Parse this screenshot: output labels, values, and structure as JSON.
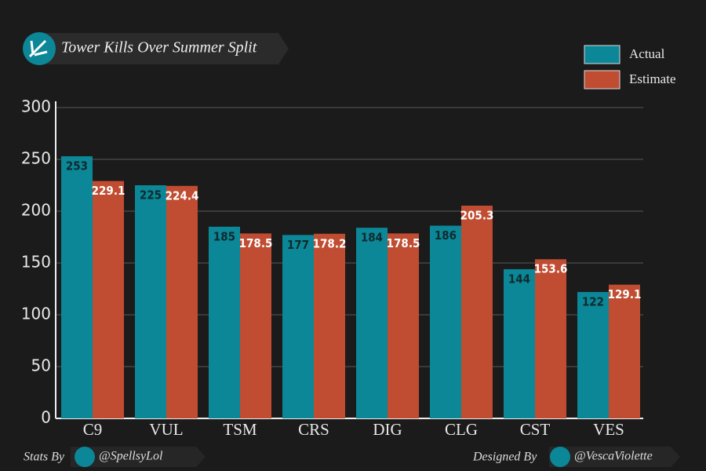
{
  "chart_data": {
    "type": "bar",
    "title": "Tower Kills Over Summer Split",
    "categories": [
      "C9",
      "VUL",
      "TSM",
      "CRS",
      "DIG",
      "CLG",
      "CST",
      "VES"
    ],
    "series": [
      {
        "name": "Actual",
        "color": "#0b8797",
        "values": [
          253,
          225,
          185,
          177,
          184,
          186,
          144,
          122
        ]
      },
      {
        "name": "Estimate",
        "color": "#c04c32",
        "values": [
          229.1,
          224.4,
          178.5,
          178.2,
          178.5,
          205.3,
          153.6,
          129.1
        ]
      }
    ],
    "ylim": [
      0,
      300
    ],
    "yticks": [
      0,
      50,
      100,
      150,
      200,
      250,
      300
    ],
    "grid": true,
    "legend": "top-right"
  },
  "footer": {
    "stats_label": "Stats By",
    "stats_handle": "@SpellsyLol",
    "design_label": "Designed By",
    "design_handle": "@VescaViolette"
  }
}
